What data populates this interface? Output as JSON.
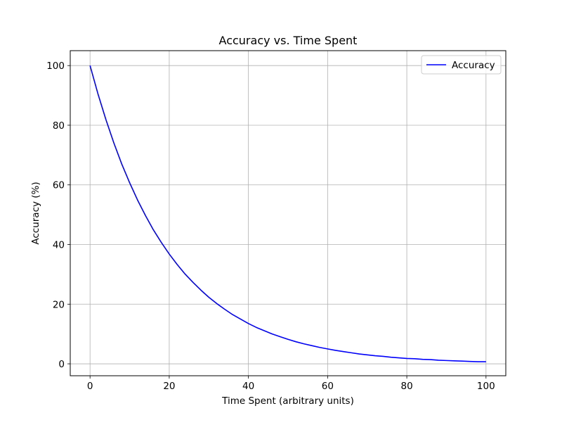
{
  "chart_data": {
    "type": "line",
    "title": "Accuracy vs. Time Spent",
    "xlabel": "Time Spent (arbitrary units)",
    "ylabel": "Accuracy (%)",
    "xlim": [
      -5,
      105
    ],
    "ylim": [
      -4,
      105
    ],
    "xticks": [
      0,
      20,
      40,
      60,
      80,
      100
    ],
    "yticks": [
      0,
      20,
      40,
      60,
      80,
      100
    ],
    "grid": true,
    "legend_position": "top-right",
    "series": [
      {
        "name": "Accuracy",
        "color": "#0000ff",
        "x": [
          0,
          2,
          4,
          6,
          8,
          10,
          12,
          14,
          16,
          18,
          20,
          22,
          24,
          26,
          28,
          30,
          32,
          34,
          36,
          38,
          40,
          42,
          44,
          46,
          48,
          50,
          52,
          54,
          56,
          58,
          60,
          62,
          64,
          66,
          68,
          70,
          72,
          74,
          76,
          78,
          80,
          82,
          84,
          86,
          88,
          90,
          92,
          94,
          96,
          98,
          100
        ],
        "y": [
          100.0,
          90.5,
          81.9,
          74.1,
          67.0,
          60.7,
          54.9,
          49.7,
          44.9,
          40.7,
          36.8,
          33.3,
          30.1,
          27.3,
          24.7,
          22.3,
          20.2,
          18.3,
          16.5,
          15.0,
          13.5,
          12.2,
          11.1,
          10.0,
          9.1,
          8.2,
          7.4,
          6.7,
          6.1,
          5.5,
          5.0,
          4.5,
          4.1,
          3.7,
          3.3,
          3.0,
          2.7,
          2.5,
          2.2,
          2.0,
          1.8,
          1.7,
          1.5,
          1.4,
          1.2,
          1.1,
          1.0,
          0.9,
          0.8,
          0.7,
          0.7
        ]
      }
    ]
  }
}
